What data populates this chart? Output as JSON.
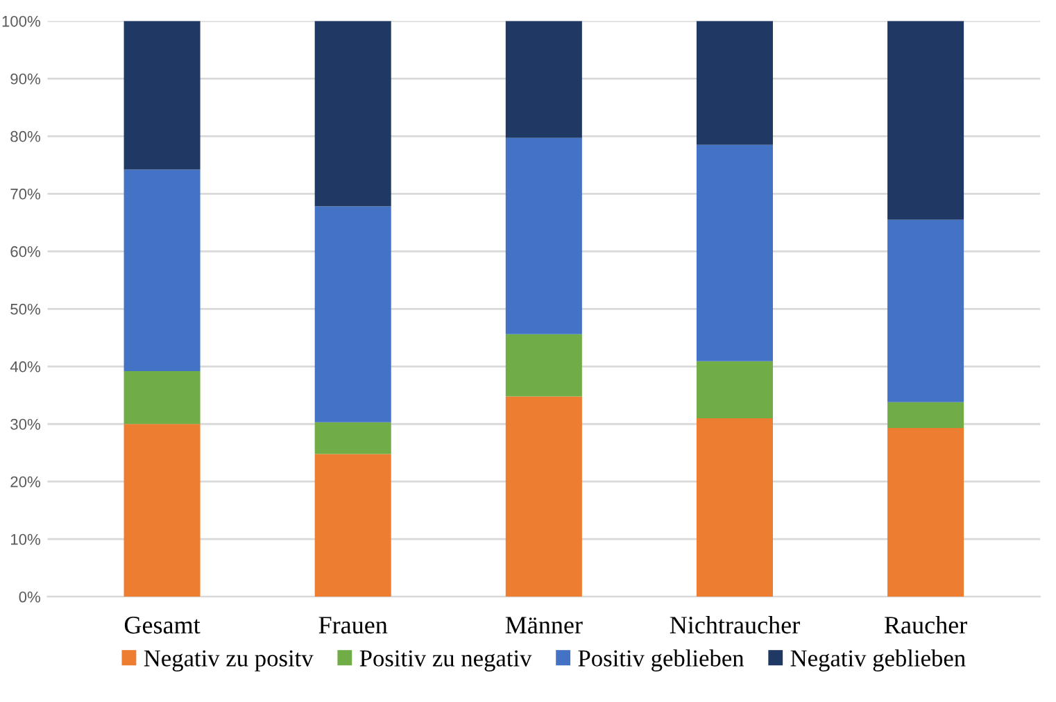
{
  "chart_data": {
    "type": "bar",
    "stacked": true,
    "categories": [
      "Gesamt",
      "Frauen",
      "Männer",
      "Nichtraucher",
      "Raucher"
    ],
    "series": [
      {
        "name": "Negativ zu positv",
        "color": "#ed7d31",
        "values": [
          30.0,
          24.8,
          34.8,
          31.0,
          29.3
        ]
      },
      {
        "name": "Positiv zu negativ",
        "color": "#70ad47",
        "values": [
          9.2,
          5.5,
          10.8,
          9.9,
          4.5
        ]
      },
      {
        "name": "Positiv geblieben",
        "color": "#4472c4",
        "values": [
          35.0,
          37.5,
          34.1,
          37.6,
          31.7
        ]
      },
      {
        "name": "Negativ geblieben",
        "color": "#203864",
        "values": [
          25.8,
          32.2,
          20.3,
          21.5,
          34.5
        ]
      }
    ],
    "ylim": [
      0,
      100
    ],
    "yticks": [
      {
        "value": 0,
        "label": "0%"
      },
      {
        "value": 10,
        "label": "10%"
      },
      {
        "value": 20,
        "label": "20%"
      },
      {
        "value": 30,
        "label": "30%"
      },
      {
        "value": 40,
        "label": "40%"
      },
      {
        "value": 50,
        "label": "50%"
      },
      {
        "value": 60,
        "label": "60%"
      },
      {
        "value": 70,
        "label": "70%"
      },
      {
        "value": 80,
        "label": "80%"
      },
      {
        "value": 90,
        "label": "90%"
      },
      {
        "value": 100,
        "label": "100%"
      }
    ],
    "grid": "y",
    "legend": "bottom"
  }
}
